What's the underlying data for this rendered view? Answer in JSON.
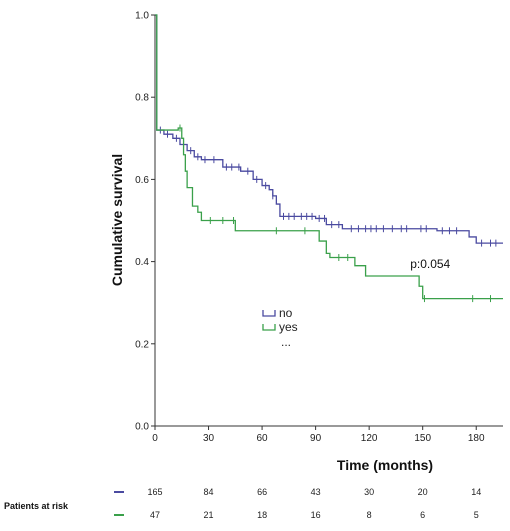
{
  "chart_data": {
    "type": "line",
    "title": "",
    "xlabel": "Time (months)",
    "ylabel": "Cumulative survival",
    "xlim": [
      0,
      195
    ],
    "ylim": [
      0,
      1.0
    ],
    "xticks": [
      0,
      30,
      60,
      90,
      120,
      150,
      180
    ],
    "yticks": [
      0.0,
      0.2,
      0.4,
      0.6,
      0.8,
      1.0
    ],
    "tick_labels_x": [
      "0",
      "30",
      "60",
      "90",
      "120",
      "150",
      "180"
    ],
    "tick_labels_y": [
      "0.0",
      "0.2",
      "0.4",
      "0.6",
      "0.8",
      "1.0"
    ],
    "grid": false,
    "legend_placement": "center",
    "series": [
      {
        "name": "no",
        "color": "#4a4aa0",
        "steps": [
          [
            0,
            1.0
          ],
          [
            1,
            0.72
          ],
          [
            5,
            0.71
          ],
          [
            10,
            0.7
          ],
          [
            14,
            0.685
          ],
          [
            18,
            0.67
          ],
          [
            22,
            0.655
          ],
          [
            26,
            0.648
          ],
          [
            38,
            0.63
          ],
          [
            48,
            0.62
          ],
          [
            55,
            0.6
          ],
          [
            60,
            0.585
          ],
          [
            64,
            0.575
          ],
          [
            66,
            0.56
          ],
          [
            68,
            0.54
          ],
          [
            70,
            0.51
          ],
          [
            90,
            0.505
          ],
          [
            96,
            0.49
          ],
          [
            105,
            0.48
          ],
          [
            158,
            0.475
          ],
          [
            176,
            0.46
          ],
          [
            180,
            0.445
          ],
          [
            195,
            0.445
          ]
        ],
        "censor_x": [
          3,
          7,
          12,
          16,
          20,
          24,
          28,
          33,
          40,
          43,
          47,
          52,
          57,
          62,
          66,
          72,
          75,
          78,
          82,
          85,
          88,
          92,
          95,
          99,
          103,
          110,
          114,
          118,
          121,
          124,
          128,
          133,
          138,
          141,
          149,
          152,
          161,
          165,
          169,
          183,
          188,
          191
        ]
      },
      {
        "name": "yes",
        "color": "#3aa04a",
        "steps": [
          [
            0,
            1.0
          ],
          [
            1,
            0.72
          ],
          [
            13,
            0.725
          ],
          [
            15,
            0.7
          ],
          [
            16,
            0.66
          ],
          [
            17,
            0.62
          ],
          [
            18,
            0.58
          ],
          [
            21,
            0.535
          ],
          [
            24,
            0.52
          ],
          [
            26,
            0.5
          ],
          [
            45,
            0.475
          ],
          [
            92,
            0.45
          ],
          [
            96,
            0.42
          ],
          [
            98,
            0.41
          ],
          [
            112,
            0.39
          ],
          [
            118,
            0.365
          ],
          [
            148,
            0.34
          ],
          [
            150,
            0.31
          ],
          [
            195,
            0.31
          ]
        ],
        "censor_x": [
          14,
          31,
          38,
          44,
          68,
          84,
          103,
          108,
          151,
          178,
          188
        ]
      }
    ],
    "annotations": [
      {
        "text": "p:0.054",
        "x": 143,
        "y": 0.385
      }
    ]
  },
  "legend": {
    "items": [
      {
        "label": "no",
        "color": "#4a4aa0"
      },
      {
        "label": "yes",
        "color": "#3aa04a"
      }
    ],
    "more": "..."
  },
  "risk_table": {
    "title": "Patients at risk",
    "rows": [
      {
        "group": "no",
        "color": "#4a4aa0",
        "values": [
          165,
          84,
          66,
          43,
          30,
          20,
          14
        ]
      },
      {
        "group": "yes",
        "color": "#3aa04a",
        "values": [
          47,
          21,
          18,
          16,
          8,
          6,
          5
        ]
      }
    ]
  }
}
